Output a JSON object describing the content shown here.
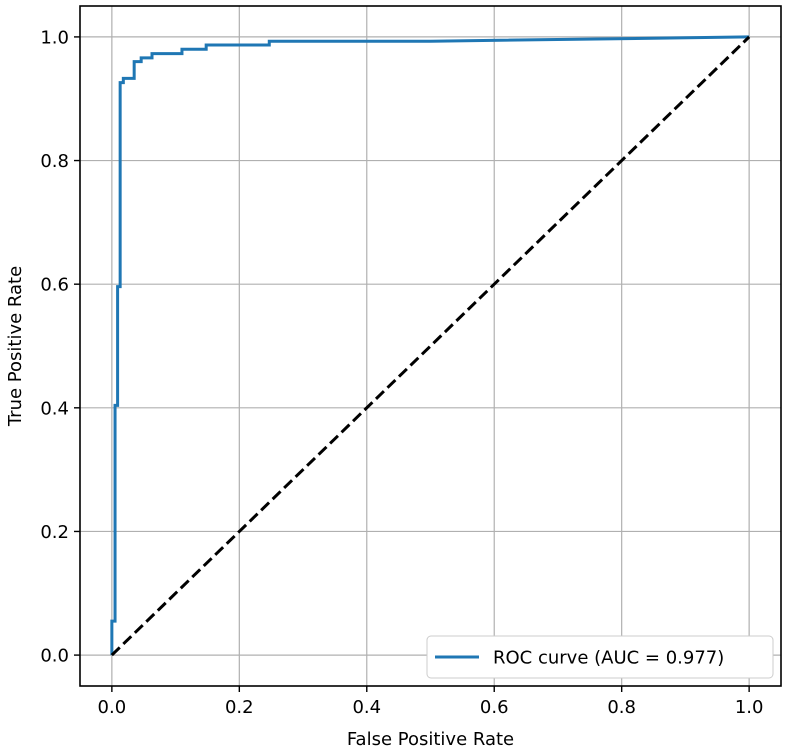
{
  "chart_data": {
    "type": "line",
    "title": "",
    "xlabel": "False Positive Rate",
    "ylabel": "True Positive Rate",
    "xlim": [
      -0.05,
      1.05
    ],
    "ylim": [
      -0.05,
      1.05
    ],
    "x_ticks": [
      0.0,
      0.2,
      0.4,
      0.6,
      0.8,
      1.0
    ],
    "y_ticks": [
      0.0,
      0.2,
      0.4,
      0.6,
      0.8,
      1.0
    ],
    "x_tick_labels": [
      "0.0",
      "0.2",
      "0.4",
      "0.6",
      "0.8",
      "1.0"
    ],
    "y_tick_labels": [
      "0.0",
      "0.2",
      "0.4",
      "0.6",
      "0.8",
      "1.0"
    ],
    "grid": true,
    "legend_position": "lower-right",
    "series": [
      {
        "name": "ROC curve (AUC = 0.977)",
        "color": "#1f77b4",
        "style": "solid",
        "x": [
          0.0,
          0.0,
          0.005,
          0.005,
          0.009,
          0.009,
          0.013,
          0.013,
          0.018,
          0.018,
          0.035,
          0.035,
          0.046,
          0.046,
          0.063,
          0.063,
          0.11,
          0.11,
          0.148,
          0.148,
          0.247,
          0.247,
          0.352,
          0.352,
          0.5,
          1.0
        ],
        "y": [
          0.0,
          0.055,
          0.055,
          0.404,
          0.404,
          0.596,
          0.596,
          0.926,
          0.926,
          0.933,
          0.933,
          0.96,
          0.96,
          0.966,
          0.966,
          0.973,
          0.973,
          0.98,
          0.98,
          0.987,
          0.987,
          0.993,
          0.993,
          0.993,
          0.993,
          1.0
        ]
      },
      {
        "name": "",
        "color": "#000000",
        "style": "dashed",
        "x": [
          0.0,
          1.0
        ],
        "y": [
          0.0,
          1.0
        ]
      }
    ]
  }
}
